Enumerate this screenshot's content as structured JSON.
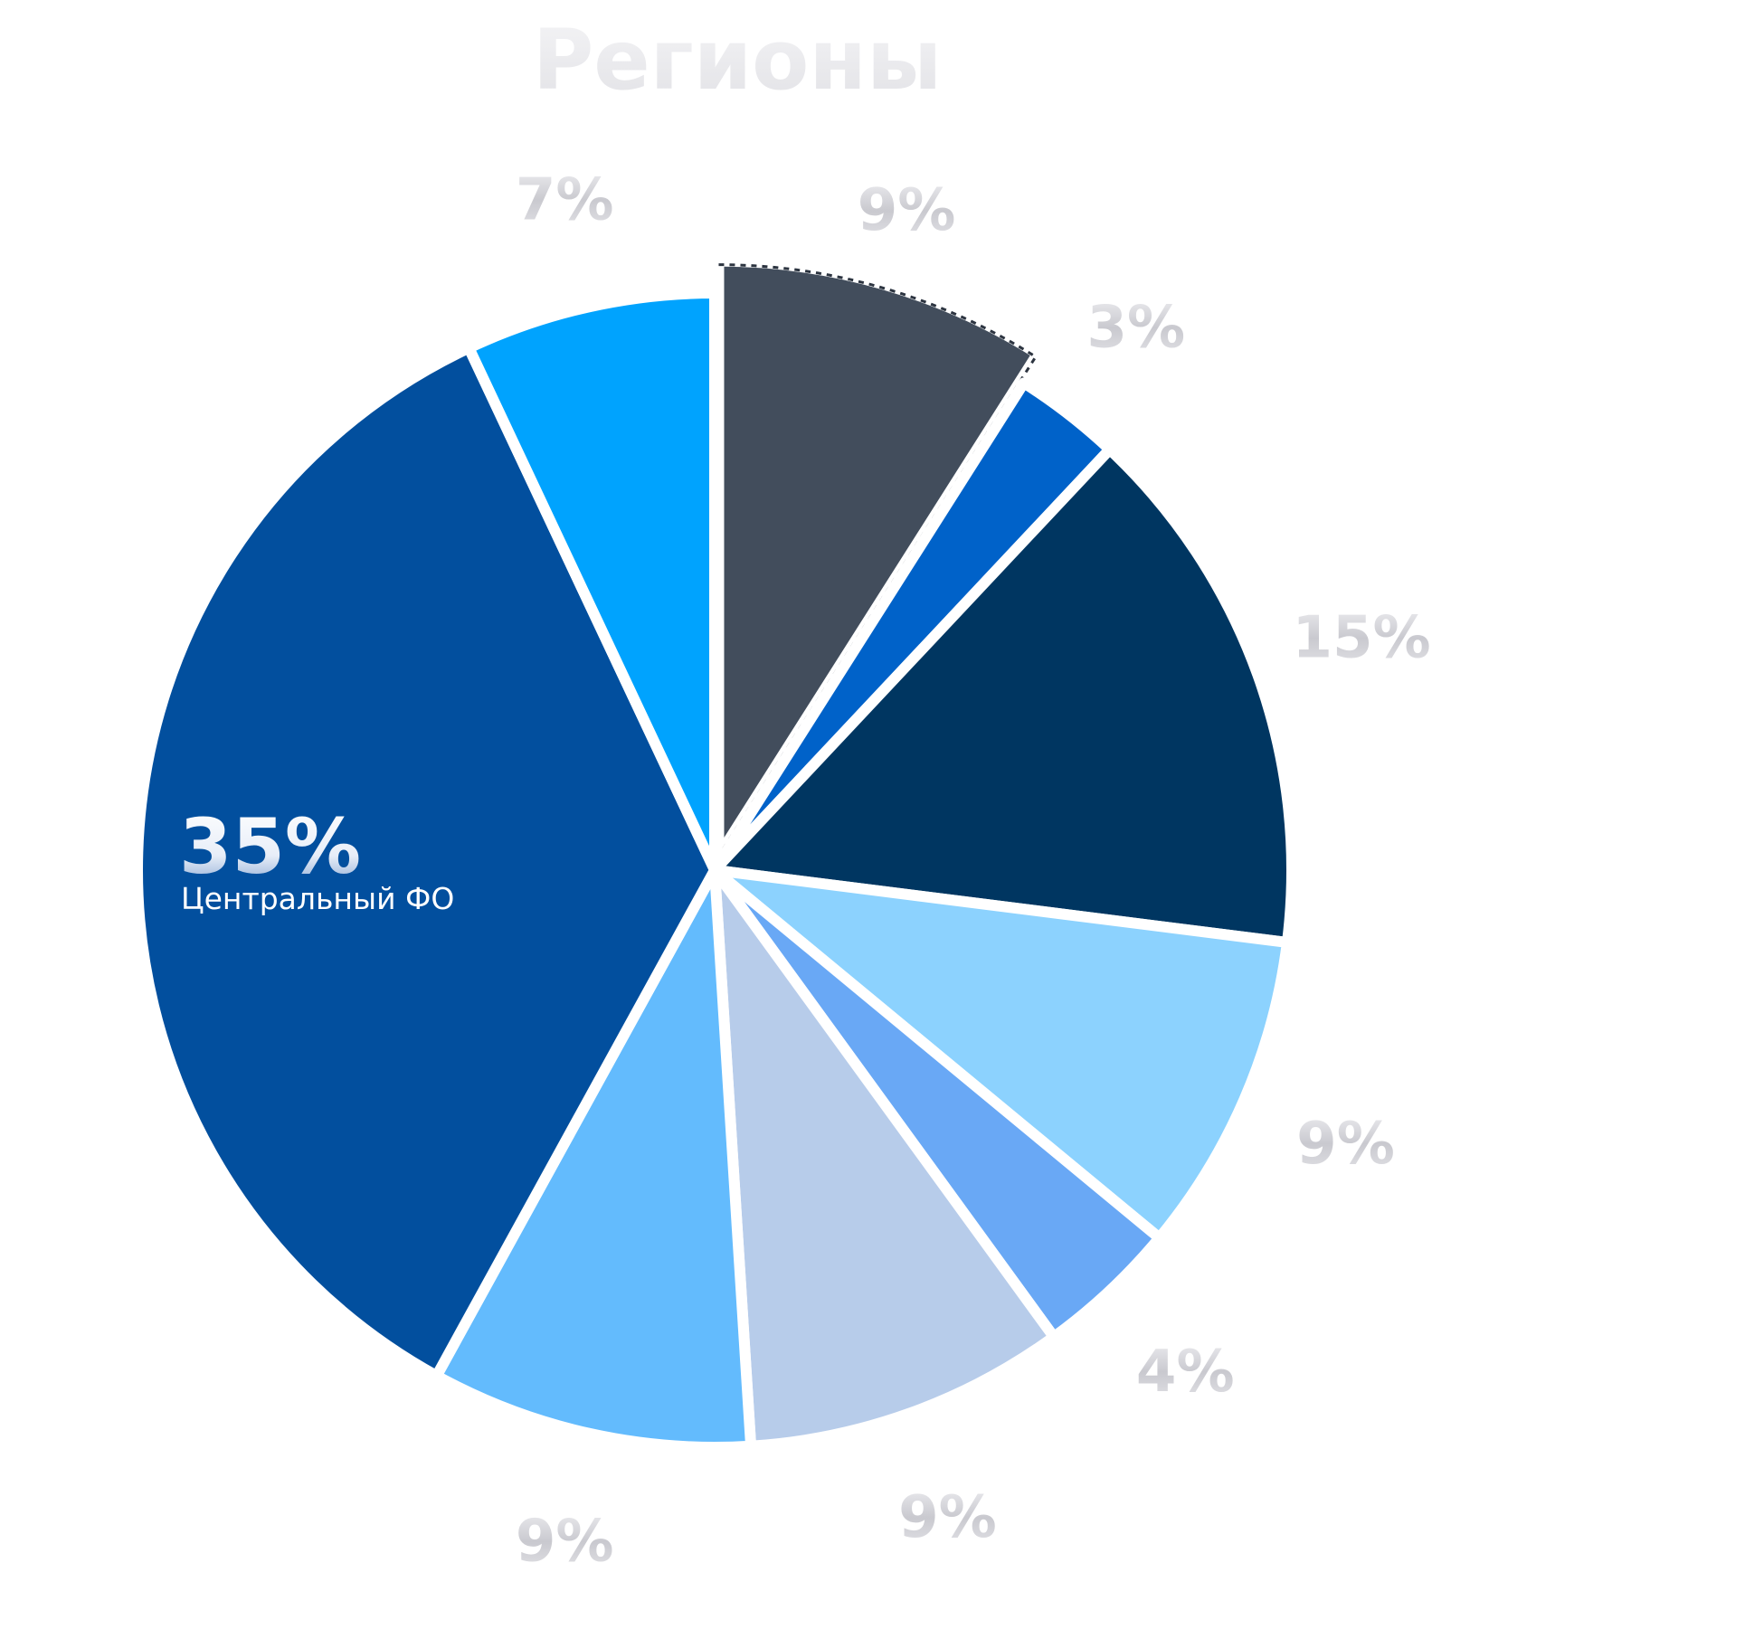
{
  "chart_data": {
    "type": "pie",
    "title": "Регионы",
    "unit": "%",
    "start_angle_deg": 0,
    "direction": "clockwise",
    "legend": "none",
    "slices": [
      {
        "label": "",
        "value": 9,
        "value_label": "9%",
        "color": "#424D5C",
        "explode": true,
        "dashed_edge": true
      },
      {
        "label": "",
        "value": 3,
        "value_label": "3%",
        "color": "#0062C9",
        "explode": false,
        "dashed_edge": false
      },
      {
        "label": "",
        "value": 15,
        "value_label": "15%",
        "color": "#003661",
        "explode": false,
        "dashed_edge": false
      },
      {
        "label": "",
        "value": 9,
        "value_label": "9%",
        "color": "#8CD2FE",
        "explode": false,
        "dashed_edge": false
      },
      {
        "label": "",
        "value": 4,
        "value_label": "4%",
        "color": "#69A8F5",
        "explode": false,
        "dashed_edge": false
      },
      {
        "label": "",
        "value": 9,
        "value_label": "9%",
        "color": "#B7CCEA",
        "explode": false,
        "dashed_edge": false
      },
      {
        "label": "",
        "value": 9,
        "value_label": "9%",
        "color": "#63BBFD",
        "explode": false,
        "dashed_edge": false
      },
      {
        "label": "Центральный ФО",
        "value": 35,
        "value_label": "35%",
        "color": "#024F9E",
        "explode": false,
        "dashed_edge": false
      },
      {
        "label": "",
        "value": 7,
        "value_label": "7%",
        "color": "#00A3FE",
        "explode": false,
        "dashed_edge": false
      }
    ],
    "highlight_index": 7,
    "colors": {
      "label_grey": "#cfcfd4",
      "label_white": "#ffffff",
      "separator": "#ffffff"
    }
  }
}
